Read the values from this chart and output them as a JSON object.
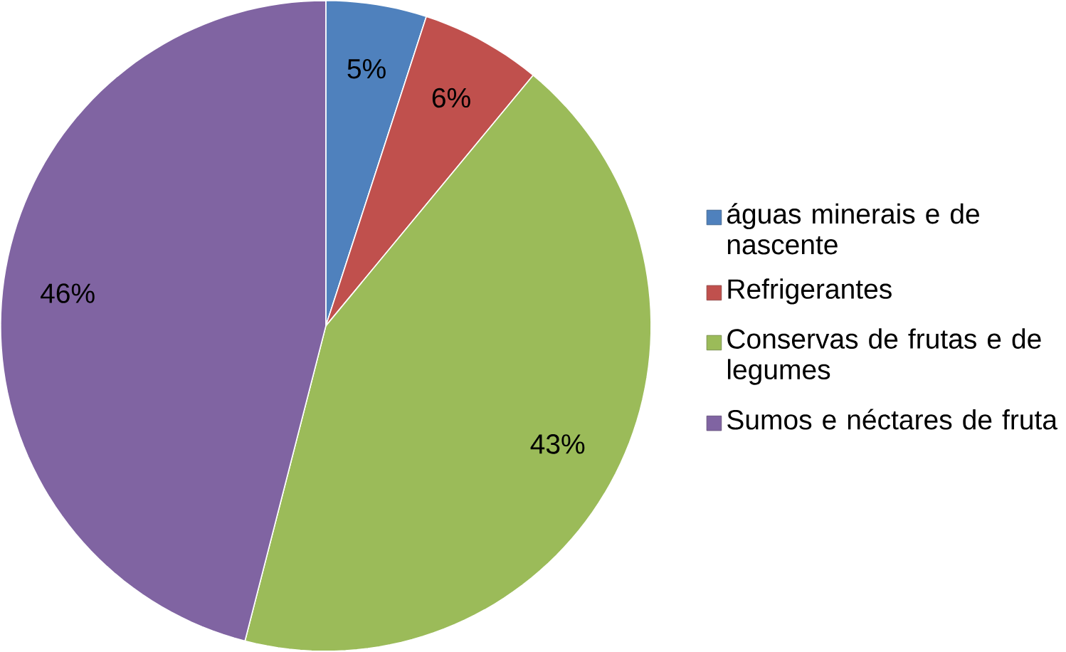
{
  "chart_data": {
    "type": "pie",
    "categories": [
      "águas minerais e de nascente",
      "Refrigerantes",
      "Conservas de frutas e de legumes",
      "Sumos e néctares de fruta"
    ],
    "values": [
      5,
      6,
      43,
      46
    ],
    "value_labels": [
      "5%",
      "6%",
      "43%",
      "46%"
    ],
    "colors": [
      "#4f81bd",
      "#c0504d",
      "#9bbb59",
      "#8064a2"
    ],
    "legend": "right"
  }
}
